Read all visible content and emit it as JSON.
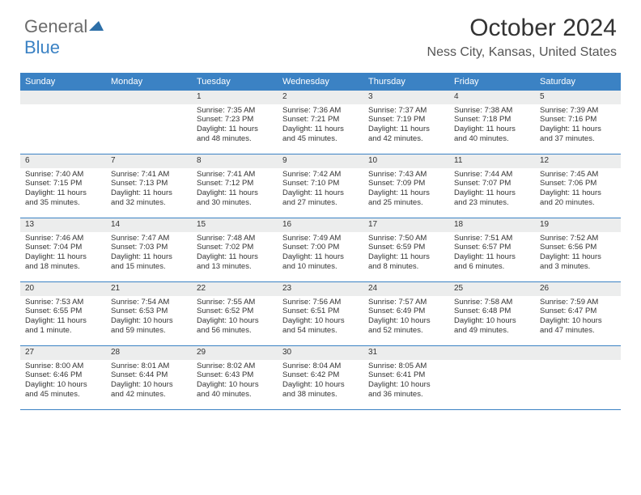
{
  "logo": {
    "part1": "General",
    "part2": "Blue"
  },
  "title": "October 2024",
  "location": "Ness City, Kansas, United States",
  "colors": {
    "header_bg": "#3b82c4",
    "header_text": "#ffffff",
    "daynum_bg": "#eceded",
    "text": "#333333",
    "logo_gray": "#6b6b6b",
    "logo_blue": "#3b82c4",
    "border": "#3b82c4",
    "background": "#ffffff"
  },
  "fonts": {
    "title_size_pt": 30,
    "location_size_pt": 16,
    "weekday_size_pt": 11,
    "daynum_size_pt": 10,
    "body_size_pt": 9.5
  },
  "weekdays": [
    "Sunday",
    "Monday",
    "Tuesday",
    "Wednesday",
    "Thursday",
    "Friday",
    "Saturday"
  ],
  "weeks": [
    [
      {
        "day": "",
        "sunrise": "",
        "sunset": "",
        "daylight1": "",
        "daylight2": ""
      },
      {
        "day": "",
        "sunrise": "",
        "sunset": "",
        "daylight1": "",
        "daylight2": ""
      },
      {
        "day": "1",
        "sunrise": "Sunrise: 7:35 AM",
        "sunset": "Sunset: 7:23 PM",
        "daylight1": "Daylight: 11 hours",
        "daylight2": "and 48 minutes."
      },
      {
        "day": "2",
        "sunrise": "Sunrise: 7:36 AM",
        "sunset": "Sunset: 7:21 PM",
        "daylight1": "Daylight: 11 hours",
        "daylight2": "and 45 minutes."
      },
      {
        "day": "3",
        "sunrise": "Sunrise: 7:37 AM",
        "sunset": "Sunset: 7:19 PM",
        "daylight1": "Daylight: 11 hours",
        "daylight2": "and 42 minutes."
      },
      {
        "day": "4",
        "sunrise": "Sunrise: 7:38 AM",
        "sunset": "Sunset: 7:18 PM",
        "daylight1": "Daylight: 11 hours",
        "daylight2": "and 40 minutes."
      },
      {
        "day": "5",
        "sunrise": "Sunrise: 7:39 AM",
        "sunset": "Sunset: 7:16 PM",
        "daylight1": "Daylight: 11 hours",
        "daylight2": "and 37 minutes."
      }
    ],
    [
      {
        "day": "6",
        "sunrise": "Sunrise: 7:40 AM",
        "sunset": "Sunset: 7:15 PM",
        "daylight1": "Daylight: 11 hours",
        "daylight2": "and 35 minutes."
      },
      {
        "day": "7",
        "sunrise": "Sunrise: 7:41 AM",
        "sunset": "Sunset: 7:13 PM",
        "daylight1": "Daylight: 11 hours",
        "daylight2": "and 32 minutes."
      },
      {
        "day": "8",
        "sunrise": "Sunrise: 7:41 AM",
        "sunset": "Sunset: 7:12 PM",
        "daylight1": "Daylight: 11 hours",
        "daylight2": "and 30 minutes."
      },
      {
        "day": "9",
        "sunrise": "Sunrise: 7:42 AM",
        "sunset": "Sunset: 7:10 PM",
        "daylight1": "Daylight: 11 hours",
        "daylight2": "and 27 minutes."
      },
      {
        "day": "10",
        "sunrise": "Sunrise: 7:43 AM",
        "sunset": "Sunset: 7:09 PM",
        "daylight1": "Daylight: 11 hours",
        "daylight2": "and 25 minutes."
      },
      {
        "day": "11",
        "sunrise": "Sunrise: 7:44 AM",
        "sunset": "Sunset: 7:07 PM",
        "daylight1": "Daylight: 11 hours",
        "daylight2": "and 23 minutes."
      },
      {
        "day": "12",
        "sunrise": "Sunrise: 7:45 AM",
        "sunset": "Sunset: 7:06 PM",
        "daylight1": "Daylight: 11 hours",
        "daylight2": "and 20 minutes."
      }
    ],
    [
      {
        "day": "13",
        "sunrise": "Sunrise: 7:46 AM",
        "sunset": "Sunset: 7:04 PM",
        "daylight1": "Daylight: 11 hours",
        "daylight2": "and 18 minutes."
      },
      {
        "day": "14",
        "sunrise": "Sunrise: 7:47 AM",
        "sunset": "Sunset: 7:03 PM",
        "daylight1": "Daylight: 11 hours",
        "daylight2": "and 15 minutes."
      },
      {
        "day": "15",
        "sunrise": "Sunrise: 7:48 AM",
        "sunset": "Sunset: 7:02 PM",
        "daylight1": "Daylight: 11 hours",
        "daylight2": "and 13 minutes."
      },
      {
        "day": "16",
        "sunrise": "Sunrise: 7:49 AM",
        "sunset": "Sunset: 7:00 PM",
        "daylight1": "Daylight: 11 hours",
        "daylight2": "and 10 minutes."
      },
      {
        "day": "17",
        "sunrise": "Sunrise: 7:50 AM",
        "sunset": "Sunset: 6:59 PM",
        "daylight1": "Daylight: 11 hours",
        "daylight2": "and 8 minutes."
      },
      {
        "day": "18",
        "sunrise": "Sunrise: 7:51 AM",
        "sunset": "Sunset: 6:57 PM",
        "daylight1": "Daylight: 11 hours",
        "daylight2": "and 6 minutes."
      },
      {
        "day": "19",
        "sunrise": "Sunrise: 7:52 AM",
        "sunset": "Sunset: 6:56 PM",
        "daylight1": "Daylight: 11 hours",
        "daylight2": "and 3 minutes."
      }
    ],
    [
      {
        "day": "20",
        "sunrise": "Sunrise: 7:53 AM",
        "sunset": "Sunset: 6:55 PM",
        "daylight1": "Daylight: 11 hours",
        "daylight2": "and 1 minute."
      },
      {
        "day": "21",
        "sunrise": "Sunrise: 7:54 AM",
        "sunset": "Sunset: 6:53 PM",
        "daylight1": "Daylight: 10 hours",
        "daylight2": "and 59 minutes."
      },
      {
        "day": "22",
        "sunrise": "Sunrise: 7:55 AM",
        "sunset": "Sunset: 6:52 PM",
        "daylight1": "Daylight: 10 hours",
        "daylight2": "and 56 minutes."
      },
      {
        "day": "23",
        "sunrise": "Sunrise: 7:56 AM",
        "sunset": "Sunset: 6:51 PM",
        "daylight1": "Daylight: 10 hours",
        "daylight2": "and 54 minutes."
      },
      {
        "day": "24",
        "sunrise": "Sunrise: 7:57 AM",
        "sunset": "Sunset: 6:49 PM",
        "daylight1": "Daylight: 10 hours",
        "daylight2": "and 52 minutes."
      },
      {
        "day": "25",
        "sunrise": "Sunrise: 7:58 AM",
        "sunset": "Sunset: 6:48 PM",
        "daylight1": "Daylight: 10 hours",
        "daylight2": "and 49 minutes."
      },
      {
        "day": "26",
        "sunrise": "Sunrise: 7:59 AM",
        "sunset": "Sunset: 6:47 PM",
        "daylight1": "Daylight: 10 hours",
        "daylight2": "and 47 minutes."
      }
    ],
    [
      {
        "day": "27",
        "sunrise": "Sunrise: 8:00 AM",
        "sunset": "Sunset: 6:46 PM",
        "daylight1": "Daylight: 10 hours",
        "daylight2": "and 45 minutes."
      },
      {
        "day": "28",
        "sunrise": "Sunrise: 8:01 AM",
        "sunset": "Sunset: 6:44 PM",
        "daylight1": "Daylight: 10 hours",
        "daylight2": "and 42 minutes."
      },
      {
        "day": "29",
        "sunrise": "Sunrise: 8:02 AM",
        "sunset": "Sunset: 6:43 PM",
        "daylight1": "Daylight: 10 hours",
        "daylight2": "and 40 minutes."
      },
      {
        "day": "30",
        "sunrise": "Sunrise: 8:04 AM",
        "sunset": "Sunset: 6:42 PM",
        "daylight1": "Daylight: 10 hours",
        "daylight2": "and 38 minutes."
      },
      {
        "day": "31",
        "sunrise": "Sunrise: 8:05 AM",
        "sunset": "Sunset: 6:41 PM",
        "daylight1": "Daylight: 10 hours",
        "daylight2": "and 36 minutes."
      },
      {
        "day": "",
        "sunrise": "",
        "sunset": "",
        "daylight1": "",
        "daylight2": ""
      },
      {
        "day": "",
        "sunrise": "",
        "sunset": "",
        "daylight1": "",
        "daylight2": ""
      }
    ]
  ]
}
